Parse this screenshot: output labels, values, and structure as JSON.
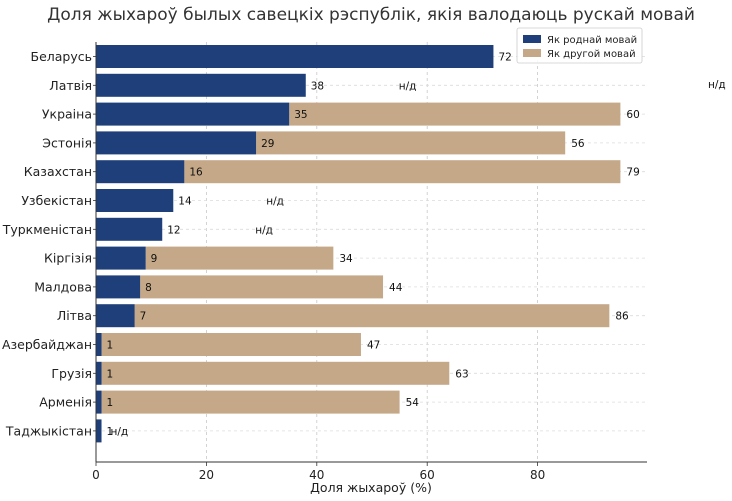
{
  "chart_data": {
    "type": "bar",
    "orientation": "horizontal",
    "stacked": "overlay",
    "title": "Доля жыхароў былых савецкіх рэспублік, якія валодаюць рускай мовай",
    "xlabel": "Доля жыхароў (%)",
    "ylabel": "",
    "xlim": [
      0,
      100
    ],
    "x_ticks": [
      "0",
      "20",
      "40",
      "60",
      "80"
    ],
    "x_tick_values": [
      0,
      20,
      40,
      60,
      80
    ],
    "grid": true,
    "legend_position": "top-right",
    "na_label": "н/д",
    "categories": [
      "Беларусь",
      "Латвія",
      "Украіна",
      "Эстонія",
      "Казахстан",
      "Узбекістан",
      "Туркменістан",
      "Кіргізія",
      "Малдова",
      "Літва",
      "Азербайджан",
      "Грузія",
      "Арменія",
      "Таджыкістан"
    ],
    "series": [
      {
        "name": "Як роднай мовай",
        "color": "#1f3f7a",
        "values": [
          72,
          38,
          35,
          29,
          16,
          14,
          12,
          9,
          8,
          7,
          1,
          1,
          1,
          1
        ]
      },
      {
        "name": "Як другой мовай",
        "color": "#c4a888",
        "values": [
          null,
          null,
          60,
          56,
          79,
          null,
          null,
          34,
          44,
          86,
          47,
          63,
          54,
          null
        ]
      }
    ]
  }
}
